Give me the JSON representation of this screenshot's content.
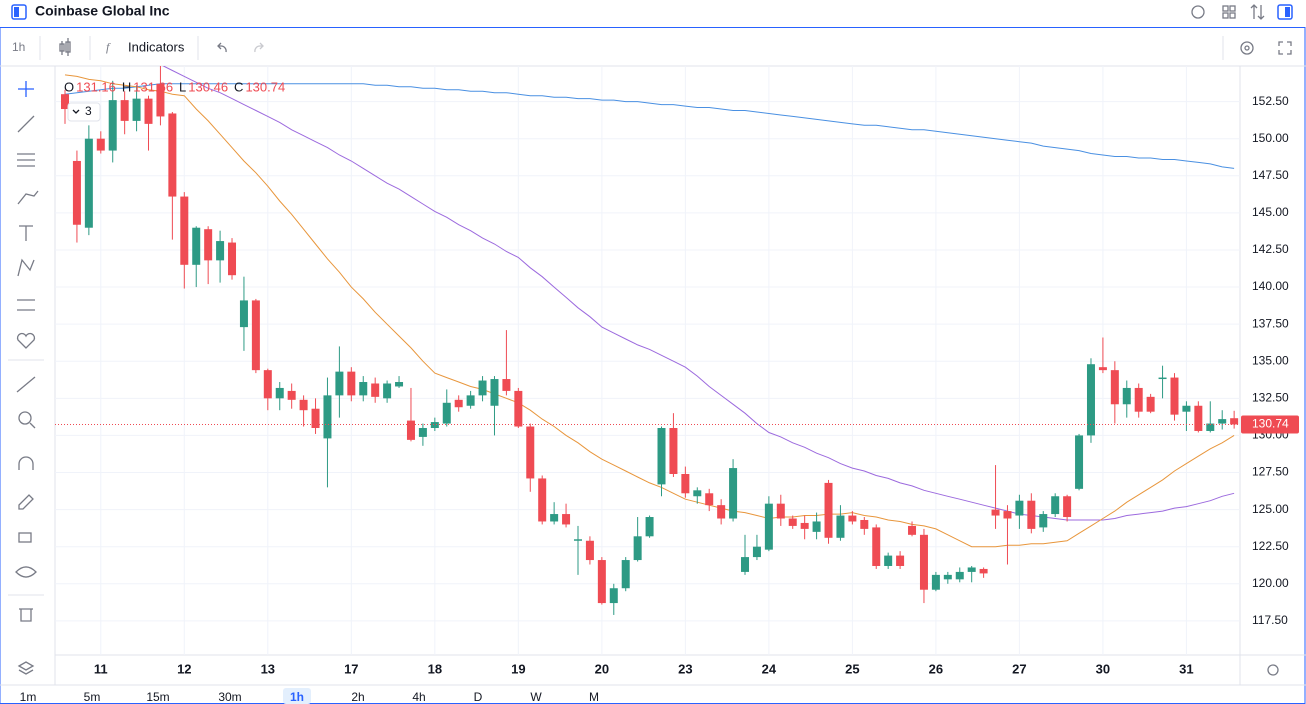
{
  "header": {
    "title": "Coinbase Global Inc"
  },
  "toolbar": {
    "interval": "1h",
    "indicators": "Indicators"
  },
  "timeframes": {
    "items": [
      "1m",
      "5m",
      "15m",
      "30m",
      "1h",
      "2h",
      "4h",
      "D",
      "W",
      "M"
    ],
    "selected": "1h"
  },
  "chart_data": {
    "type": "candlestick",
    "legend_labels": [
      "O",
      "H",
      "L",
      "C"
    ],
    "indicator_count": 3,
    "up_color": "#2d9a84",
    "down_color": "#ef4b53",
    "categories": [
      null,
      null,
      null,
      "11",
      null,
      null,
      null,
      null,
      null,
      null,
      "12",
      null,
      null,
      null,
      null,
      null,
      null,
      "13",
      null,
      null,
      null,
      null,
      null,
      null,
      "17",
      null,
      null,
      null,
      null,
      null,
      null,
      "18",
      null,
      null,
      null,
      null,
      null,
      null,
      "19",
      null,
      null,
      null,
      null,
      null,
      null,
      "20",
      null,
      null,
      null,
      null,
      null,
      null,
      "23",
      null,
      null,
      null,
      null,
      null,
      null,
      "24",
      null,
      null,
      null,
      null,
      null,
      null,
      "25",
      null,
      null,
      null,
      null,
      null,
      null,
      "26",
      null,
      null,
      null,
      null,
      null,
      null,
      "27",
      null,
      null,
      null,
      null,
      null,
      null,
      "30",
      null,
      null,
      null,
      null,
      null,
      null,
      "31",
      null,
      null,
      null,
      null
    ],
    "open": [
      153.0,
      148.5,
      144.0,
      150.0,
      149.2,
      152.6,
      151.2,
      152.7,
      153.7,
      151.7,
      146.1,
      141.5,
      143.9,
      141.8,
      143.0,
      137.3,
      139.1,
      134.4,
      132.5,
      133.0,
      132.4,
      131.8,
      129.8,
      132.7,
      134.3,
      132.7,
      133.5,
      132.5,
      133.3,
      131.0,
      129.9,
      130.5,
      130.8,
      132.4,
      132.0,
      132.7,
      132.0,
      133.8,
      133.0,
      130.6,
      127.1,
      124.2,
      124.7,
      122.9,
      122.9,
      121.6,
      118.7,
      119.7,
      121.6,
      123.2,
      126.7,
      130.5,
      127.4,
      125.9,
      126.1,
      125.3,
      124.4,
      120.8,
      121.8,
      122.3,
      125.4,
      124.4,
      124.1,
      123.5,
      126.8,
      123.1,
      124.6,
      124.3,
      123.8,
      121.2,
      121.9,
      123.9,
      123.3,
      119.6,
      120.3,
      120.3,
      120.8,
      121.0,
      125.0,
      124.9,
      124.6,
      125.6,
      123.8,
      124.7,
      125.9,
      126.4,
      130.0,
      134.6,
      134.4,
      132.1,
      133.2,
      132.6,
      133.8,
      133.9,
      131.6,
      132.0,
      130.3,
      130.8,
      131.16
    ],
    "high": [
      153.3,
      149.2,
      150.9,
      150.5,
      153.9,
      153.2,
      153.6,
      152.9,
      155.0,
      151.8,
      146.4,
      144.1,
      144.1,
      143.8,
      143.3,
      140.7,
      139.2,
      134.5,
      133.6,
      133.5,
      132.7,
      132.5,
      133.9,
      136.0,
      134.6,
      134.0,
      133.9,
      133.7,
      134.0,
      133.2,
      130.8,
      131.2,
      133.1,
      132.7,
      133.0,
      134.0,
      134.0,
      137.1,
      133.2,
      130.8,
      127.3,
      125.5,
      125.4,
      123.9,
      123.2,
      121.8,
      120.0,
      121.8,
      124.5,
      124.6,
      130.6,
      131.5,
      127.9,
      126.5,
      126.4,
      125.7,
      128.4,
      123.3,
      123.3,
      125.9,
      126.0,
      124.6,
      124.6,
      124.8,
      127.0,
      125.3,
      124.9,
      124.5,
      124.0,
      122.1,
      122.2,
      124.2,
      123.7,
      120.8,
      120.8,
      121.1,
      121.2,
      121.1,
      128.0,
      125.3,
      126.0,
      126.1,
      124.9,
      126.1,
      126.0,
      130.1,
      135.2,
      136.6,
      135.0,
      133.7,
      133.5,
      132.8,
      134.7,
      134.2,
      132.3,
      132.3,
      132.3,
      131.7,
      131.66
    ],
    "low": [
      151.0,
      143.0,
      143.5,
      149.0,
      148.4,
      150.3,
      150.5,
      149.2,
      150.9,
      143.2,
      139.9,
      140.0,
      140.2,
      140.3,
      140.5,
      135.7,
      134.2,
      131.7,
      131.7,
      131.8,
      130.6,
      130.1,
      126.5,
      131.2,
      132.3,
      132.3,
      132.2,
      132.2,
      133.2,
      129.6,
      129.3,
      130.3,
      130.6,
      131.6,
      131.8,
      132.3,
      130.0,
      132.7,
      130.5,
      126.2,
      124.0,
      124.0,
      123.8,
      120.6,
      121.3,
      118.6,
      117.9,
      119.5,
      121.5,
      123.1,
      125.9,
      127.2,
      125.8,
      125.4,
      124.9,
      124.0,
      124.2,
      120.6,
      121.6,
      122.2,
      123.9,
      123.7,
      123.0,
      123.0,
      122.7,
      122.9,
      124.0,
      123.3,
      121.0,
      121.0,
      121.0,
      123.2,
      118.7,
      119.5,
      120.0,
      120.1,
      120.1,
      120.4,
      123.7,
      121.3,
      123.7,
      123.4,
      123.5,
      124.5,
      124.2,
      126.3,
      129.5,
      134.2,
      130.8,
      131.2,
      131.2,
      131.5,
      132.5,
      131.0,
      130.3,
      130.2,
      130.2,
      130.4,
      130.46
    ],
    "close": [
      152.0,
      144.2,
      150.0,
      149.2,
      152.6,
      151.2,
      152.7,
      151.0,
      151.5,
      146.1,
      141.5,
      144.0,
      141.8,
      143.1,
      140.8,
      139.1,
      134.4,
      132.5,
      133.2,
      132.4,
      131.7,
      130.5,
      132.7,
      134.3,
      132.7,
      133.6,
      132.6,
      133.5,
      133.6,
      129.7,
      130.5,
      130.9,
      132.2,
      131.9,
      132.7,
      133.7,
      133.8,
      133.0,
      130.6,
      127.1,
      124.2,
      124.7,
      124.0,
      123.0,
      121.6,
      118.7,
      119.7,
      121.6,
      123.2,
      124.5,
      130.5,
      127.4,
      126.1,
      126.3,
      125.3,
      124.4,
      127.8,
      121.8,
      122.5,
      125.4,
      124.4,
      123.9,
      123.7,
      124.2,
      123.1,
      124.6,
      124.2,
      123.7,
      121.2,
      121.9,
      121.2,
      123.3,
      119.6,
      120.6,
      120.6,
      120.8,
      121.1,
      120.7,
      124.6,
      124.4,
      125.6,
      123.7,
      124.7,
      125.9,
      124.5,
      130.0,
      134.8,
      134.4,
      132.1,
      133.2,
      131.6,
      131.6,
      133.9,
      131.4,
      132.0,
      130.3,
      130.8,
      131.1,
      130.74
    ],
    "series": [
      {
        "color": "#4a90e2",
        "values": [
          153.0,
          153.1,
          153.2,
          153.3,
          153.4,
          153.4,
          153.5,
          153.6,
          153.7,
          153.7,
          153.7,
          153.7,
          153.7,
          153.7,
          153.7,
          153.7,
          153.7,
          153.7,
          153.7,
          153.7,
          153.7,
          153.7,
          153.7,
          153.7,
          153.7,
          153.7,
          153.6,
          153.6,
          153.5,
          153.5,
          153.4,
          153.4,
          153.3,
          153.3,
          153.2,
          153.2,
          153.1,
          153.1,
          153.0,
          152.9,
          152.9,
          152.8,
          152.8,
          152.7,
          152.7,
          152.6,
          152.6,
          152.5,
          152.5,
          152.4,
          152.3,
          152.3,
          152.2,
          152.1,
          152.1,
          152.0,
          151.9,
          151.9,
          151.8,
          151.7,
          151.6,
          151.5,
          151.4,
          151.3,
          151.2,
          151.1,
          151.0,
          150.9,
          150.9,
          150.8,
          150.7,
          150.6,
          150.6,
          150.5,
          150.4,
          150.3,
          150.2,
          150.1,
          150.0,
          149.9,
          149.8,
          149.7,
          149.5,
          149.4,
          149.3,
          149.2,
          149.0,
          148.9,
          148.8,
          148.8,
          148.7,
          148.7,
          148.6,
          148.6,
          148.5,
          148.4,
          148.3,
          148.1,
          148.0
        ]
      },
      {
        "color": "#9c6ade",
        "values": [
          null,
          null,
          null,
          null,
          null,
          null,
          null,
          null,
          155.0,
          154.6,
          154.2,
          153.8,
          153.4,
          153.1,
          152.7,
          152.3,
          151.9,
          151.5,
          151.1,
          150.6,
          150.2,
          149.8,
          149.4,
          148.9,
          148.5,
          148.0,
          147.5,
          147.0,
          146.6,
          146.1,
          145.6,
          145.1,
          144.7,
          144.2,
          143.8,
          143.3,
          142.9,
          142.4,
          142.0,
          141.3,
          140.7,
          140.0,
          139.3,
          138.6,
          138.0,
          137.3,
          136.9,
          136.5,
          136.1,
          135.8,
          135.4,
          135.0,
          134.6,
          134.0,
          133.3,
          132.7,
          132.1,
          131.5,
          130.8,
          130.2,
          129.9,
          129.5,
          129.2,
          128.8,
          128.5,
          128.1,
          127.8,
          127.6,
          127.3,
          127.1,
          126.8,
          126.6,
          126.3,
          126.1,
          125.9,
          125.7,
          125.5,
          125.3,
          125.1,
          124.9,
          124.7,
          124.6,
          124.5,
          124.4,
          124.3,
          124.3,
          124.3,
          124.3,
          124.4,
          124.6,
          124.7,
          124.8,
          124.9,
          125.1,
          125.2,
          125.4,
          125.6,
          125.9,
          126.1
        ]
      },
      {
        "color": "#e8963c",
        "values": [
          154.3,
          154.2,
          154.0,
          153.9,
          153.7,
          153.6,
          153.5,
          153.3,
          153.2,
          153.0,
          152.9,
          152.0,
          151.2,
          150.3,
          149.4,
          148.5,
          147.7,
          146.8,
          145.8,
          144.9,
          143.9,
          142.9,
          141.9,
          141.0,
          140.0,
          139.2,
          138.3,
          137.5,
          136.7,
          135.9,
          135.0,
          134.2,
          133.9,
          133.6,
          133.3,
          133.1,
          132.8,
          132.5,
          132.2,
          131.7,
          131.1,
          130.6,
          130.0,
          129.5,
          128.9,
          128.4,
          128.0,
          127.6,
          127.2,
          126.8,
          126.5,
          126.1,
          125.7,
          125.5,
          125.3,
          125.1,
          124.9,
          124.8,
          124.6,
          124.4,
          124.5,
          124.5,
          124.6,
          124.6,
          124.7,
          124.7,
          124.8,
          124.6,
          124.5,
          124.3,
          124.2,
          124.0,
          123.9,
          123.7,
          123.3,
          122.9,
          122.5,
          122.5,
          122.5,
          122.6,
          122.6,
          122.7,
          122.7,
          122.8,
          122.9,
          123.4,
          123.9,
          124.4,
          124.9,
          125.5,
          126.0,
          126.5,
          127.0,
          127.6,
          128.1,
          128.6,
          129.1,
          129.5,
          130.0
        ]
      }
    ],
    "ylim": [
      115.2,
      154.9
    ],
    "yticks": [
      {
        "value": 117.5,
        "label": "117.50"
      },
      {
        "value": 120,
        "label": "120.00"
      },
      {
        "value": 122.5,
        "label": "122.50"
      },
      {
        "value": 125,
        "label": "125.00"
      },
      {
        "value": 127.5,
        "label": "127.50"
      },
      {
        "value": 130,
        "label": "130.00"
      },
      {
        "value": 132.5,
        "label": "132.50"
      },
      {
        "value": 135,
        "label": "135.00"
      },
      {
        "value": 137.5,
        "label": "137.50"
      },
      {
        "value": 140,
        "label": "140.00"
      },
      {
        "value": 142.5,
        "label": "142.50"
      },
      {
        "value": 145,
        "label": "145.00"
      },
      {
        "value": 147.5,
        "label": "147.50"
      },
      {
        "value": 150,
        "label": "150.00"
      },
      {
        "value": 152.5,
        "label": "152.50"
      }
    ],
    "grid": true
  }
}
